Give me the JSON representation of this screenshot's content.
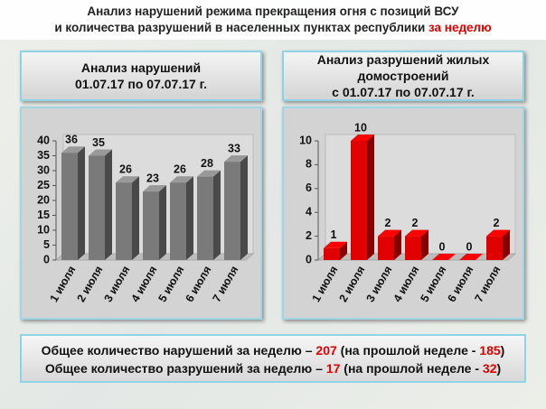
{
  "header": {
    "line1": "Анализ нарушений режима прекращения огня с позиций ВСУ",
    "line2": "и количества разрушений в населенных пунктах республики ",
    "line2_highlight": "за неделю"
  },
  "chart_data": [
    {
      "type": "bar3d",
      "title": [
        "Анализ нарушений",
        "01.07.17 по 07.07.17 г."
      ],
      "categories": [
        "1 июля",
        "2 июля",
        "3 июля",
        "4 июля",
        "5 июля",
        "6 июля",
        "7 июля"
      ],
      "values": [
        36,
        35,
        26,
        23,
        26,
        28,
        33
      ],
      "color": "#7a7a7a",
      "ylim": [
        0,
        40
      ],
      "yticks": [
        0,
        5,
        10,
        15,
        20,
        25,
        30,
        35,
        40
      ]
    },
    {
      "type": "bar3d",
      "title": [
        "Анализ разрушений жилых",
        "домостроений",
        "с 01.07.17 по 07.07.17 г."
      ],
      "categories": [
        "1 июля",
        "2 июля",
        "3 июля",
        "4 июля",
        "5 июля",
        "6 июля",
        "7 июля"
      ],
      "values": [
        1,
        10,
        2,
        2,
        0,
        0,
        2
      ],
      "color": "#e00000",
      "ylim": [
        0,
        10
      ],
      "yticks": [
        0,
        2,
        4,
        6,
        8,
        10
      ]
    }
  ],
  "footer": {
    "line1": [
      "Общее количество нарушений за неделю – ",
      "207",
      " (на прошлой неделе - ",
      "185",
      ")"
    ],
    "line2": [
      "Общее количество разрушений за неделю – ",
      "17",
      " (на прошлой неделе - ",
      "32",
      ")"
    ]
  }
}
